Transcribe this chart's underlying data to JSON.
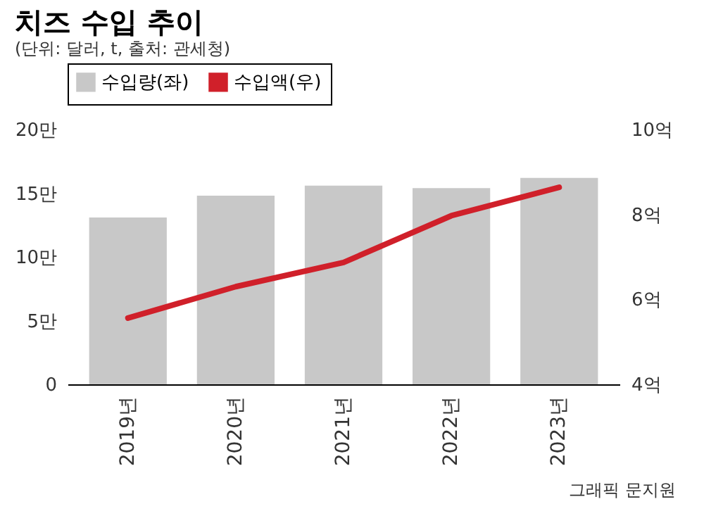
{
  "chart_data": {
    "type": "bar",
    "title": "치즈 수입 추이",
    "subtitle": "(단위: 달러, t, 출처: 관세청)",
    "categories": [
      "2019년",
      "2020년",
      "2021년",
      "2022년",
      "2023년"
    ],
    "series": [
      {
        "name": "수입량(좌)",
        "color": "#c8c8c8",
        "values": [
          13.1,
          14.8,
          15.6,
          15.4,
          16.2
        ]
      },
      {
        "name": "수입액(우)",
        "type": "line",
        "axis": "y2",
        "color": "#d0202a",
        "values": [
          5.56,
          6.3,
          6.87,
          7.97,
          8.64
        ]
      }
    ],
    "ylim": [
      0,
      20
    ],
    "yticks": [
      0,
      {
        "value": 5,
        "label": "5만"
      },
      {
        "value": 10,
        "label": "10만"
      },
      {
        "value": 15,
        "label": "15만"
      },
      {
        "value": 20,
        "label": "20만"
      }
    ],
    "y2lim": [
      4,
      10
    ],
    "y2ticks": [
      {
        "value": 4,
        "label": "4억"
      },
      {
        "value": 6,
        "label": "6억"
      },
      {
        "value": 8,
        "label": "8억"
      },
      {
        "value": 10,
        "label": "10억"
      }
    ],
    "legend": "top",
    "grid": false,
    "annotations": [
      "그래픽 문지원"
    ]
  }
}
